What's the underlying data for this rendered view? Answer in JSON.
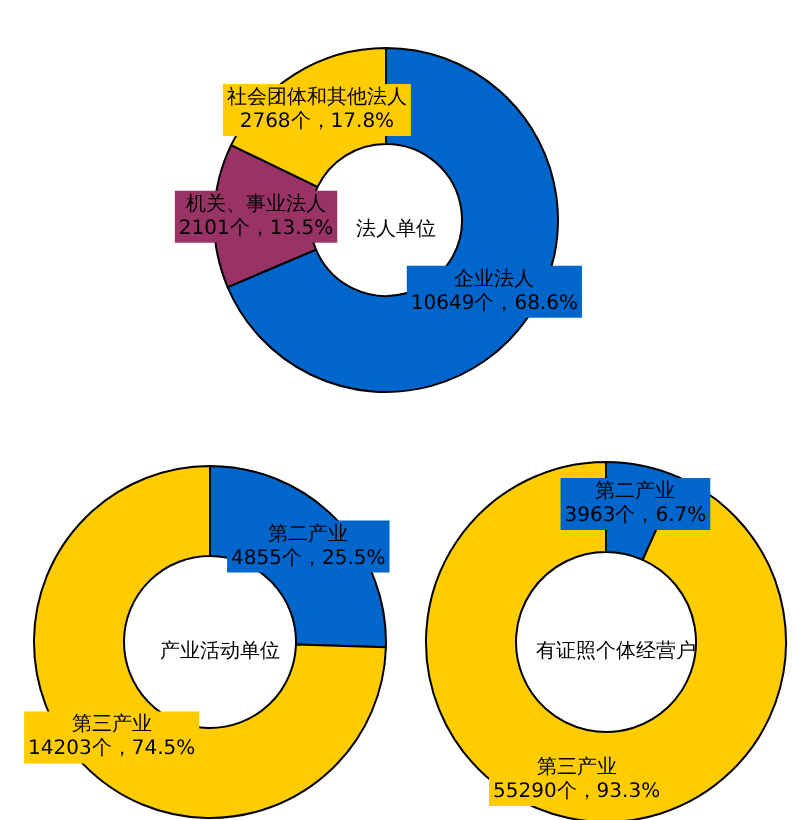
{
  "chart_data": [
    {
      "type": "donut",
      "title": "法人单位",
      "categories": [
        "企业法人",
        "机关、事业法人",
        "社会团体和其他法人"
      ],
      "values": [
        10649,
        2101,
        2768
      ],
      "colors": [
        "#0066cc",
        "#993366",
        "#ffcc00"
      ],
      "value_labels": [
        "10649个，68.6%",
        "2101个，13.5%",
        "2768个，17.8%"
      ],
      "legend": false
    },
    {
      "type": "donut",
      "title": "产业活动单位",
      "categories": [
        "第二产业",
        "第三产业"
      ],
      "values": [
        4855,
        14203
      ],
      "colors": [
        "#0066cc",
        "#ffcc00"
      ],
      "value_labels": [
        "4855个，25.5%",
        "14203个，74.5%"
      ],
      "legend": false
    },
    {
      "type": "donut",
      "title": "有证照个体经营户",
      "categories": [
        "第二产业",
        "第三产业"
      ],
      "values": [
        3963,
        55290
      ],
      "colors": [
        "#0066cc",
        "#ffcc00"
      ],
      "value_labels": [
        "3963个，6.7%",
        "55290个，93.3%"
      ],
      "legend": false
    }
  ]
}
